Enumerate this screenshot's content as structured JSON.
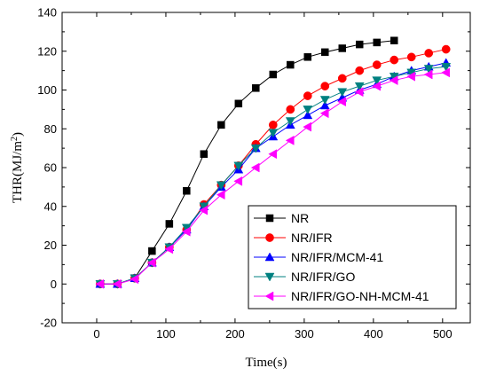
{
  "chart_data": {
    "type": "line",
    "title": "",
    "xlabel": "Time(s)",
    "ylabel": "THR(MJ/m²)",
    "ylabel_parts": {
      "main": "THR(MJ/m",
      "sup": "2",
      "close": ")"
    },
    "xlim": [
      -50,
      540
    ],
    "ylim": [
      -20,
      140
    ],
    "xticks": [
      0,
      100,
      200,
      300,
      400,
      500
    ],
    "yticks": [
      -20,
      0,
      20,
      40,
      60,
      80,
      100,
      120,
      140
    ],
    "xtick_labels": [
      "0",
      "100",
      "200",
      "300",
      "400",
      "500"
    ],
    "ytick_labels": [
      "-20",
      "0",
      "20",
      "40",
      "60",
      "80",
      "100",
      "120",
      "140"
    ],
    "grid": false,
    "legend_position": "bottom-right",
    "series": [
      {
        "name": "NR",
        "color": "#000000",
        "marker": "square",
        "x": [
          5,
          30,
          55,
          80,
          105,
          130,
          155,
          180,
          205,
          230,
          255,
          280,
          305,
          330,
          355,
          380,
          405,
          430
        ],
        "y": [
          0,
          0,
          3,
          17,
          31,
          48,
          67,
          82,
          93,
          101,
          108,
          113,
          117,
          119.5,
          121.5,
          123.5,
          124.5,
          125.5
        ]
      },
      {
        "name": "NR/IFR",
        "color": "#ff0000",
        "marker": "circle",
        "x": [
          5,
          30,
          55,
          80,
          105,
          130,
          155,
          180,
          205,
          230,
          255,
          280,
          305,
          330,
          355,
          380,
          405,
          430,
          455,
          480,
          505
        ],
        "y": [
          0,
          0,
          3,
          11,
          19,
          28,
          41,
          51,
          61,
          72,
          82,
          90,
          97,
          102,
          106,
          110,
          113,
          115.5,
          117,
          119,
          121
        ]
      },
      {
        "name": "NR/IFR/MCM-41",
        "color": "#0000ff",
        "marker": "triangle-up",
        "x": [
          5,
          30,
          55,
          80,
          105,
          130,
          155,
          180,
          205,
          230,
          255,
          280,
          305,
          330,
          355,
          380,
          405,
          430,
          455,
          480,
          505
        ],
        "y": [
          0,
          0,
          3,
          11,
          19,
          28,
          40,
          50,
          59,
          70,
          76,
          82,
          87,
          92,
          96,
          100,
          103,
          107,
          110,
          112,
          114
        ]
      },
      {
        "name": "NR/IFR/GO",
        "color": "#008080",
        "marker": "triangle-down",
        "x": [
          5,
          30,
          55,
          80,
          105,
          130,
          155,
          180,
          205,
          230,
          255,
          280,
          305,
          330,
          355,
          380,
          405,
          430,
          455,
          480,
          505
        ],
        "y": [
          0,
          0,
          3,
          11,
          19,
          29,
          40,
          51,
          61,
          70,
          78,
          84,
          90,
          95,
          99,
          102,
          105,
          107,
          109,
          111,
          112
        ]
      },
      {
        "name": "NR/IFR/GO-NH-MCM-41",
        "color": "#ff00ff",
        "marker": "triangle-left",
        "x": [
          5,
          30,
          55,
          80,
          105,
          130,
          155,
          180,
          205,
          230,
          255,
          280,
          305,
          330,
          355,
          380,
          405,
          430,
          455,
          480,
          505
        ],
        "y": [
          0,
          0,
          2.5,
          11,
          18,
          27,
          38,
          46,
          53,
          60,
          67,
          74,
          81,
          88,
          94,
          99,
          102,
          105,
          107,
          108,
          109
        ]
      }
    ]
  }
}
